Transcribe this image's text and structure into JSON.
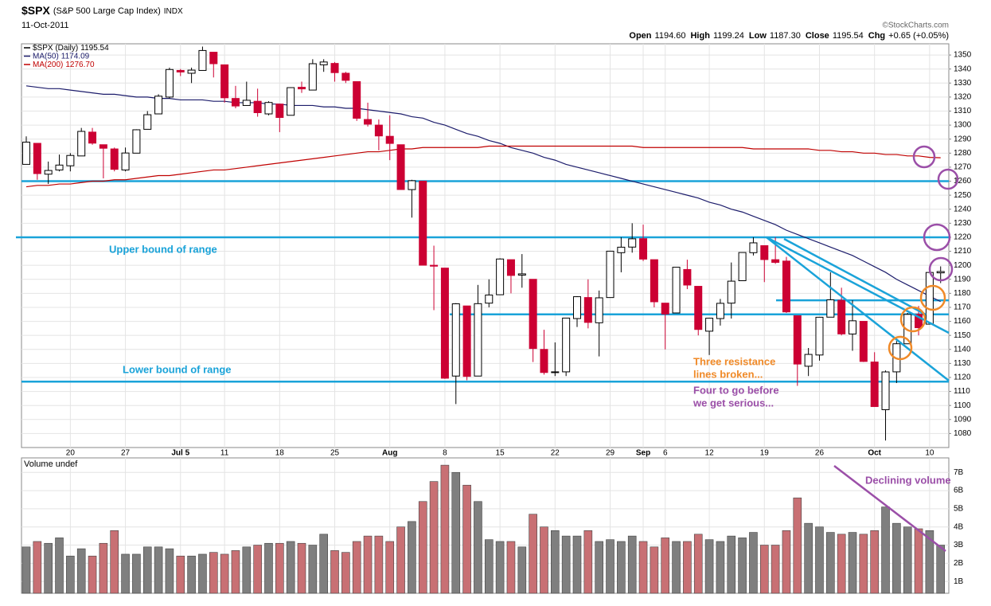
{
  "chart_data": [
    {
      "type": "candlestick",
      "title": "$SPX",
      "subtitle": "(S&P 500 Large Cap Index)",
      "exchange": "INDX",
      "date": "11-Oct-2011",
      "credit": "©StockCharts.com",
      "quote": [
        {
          "label": "Open",
          "value": "1194.60"
        },
        {
          "label": "High",
          "value": "1199.24"
        },
        {
          "label": "Low",
          "value": "1187.30"
        },
        {
          "label": "Close",
          "value": "1195.54"
        },
        {
          "label": "Chg",
          "value": "+0.65 (+0.05%)"
        }
      ],
      "name": "$SPX (Daily)",
      "legend_value": "1195.54",
      "up_color": "#000000",
      "down_color": "#cc0033",
      "categories": [
        "Jun 14",
        "Jun 15",
        "Jun 16",
        "Jun 17",
        "Jun 20",
        "Jun 21",
        "Jun 22",
        "Jun 23",
        "Jun 24",
        "Jun 27",
        "Jun 28",
        "Jun 29",
        "Jun 30",
        "Jul 1",
        "Jul 5",
        "Jul 6",
        "Jul 7",
        "Jul 8",
        "Jul 11",
        "Jul 12",
        "Jul 13",
        "Jul 14",
        "Jul 15",
        "Jul 18",
        "Jul 19",
        "Jul 20",
        "Jul 21",
        "Jul 22",
        "Jul 25",
        "Jul 26",
        "Jul 27",
        "Jul 28",
        "Jul 29",
        "Aug 1",
        "Aug 2",
        "Aug 3",
        "Aug 4",
        "Aug 5",
        "Aug 8",
        "Aug 9",
        "Aug 10",
        "Aug 11",
        "Aug 12",
        "Aug 15",
        "Aug 16",
        "Aug 17",
        "Aug 18",
        "Aug 19",
        "Aug 22",
        "Aug 23",
        "Aug 24",
        "Aug 25",
        "Aug 26",
        "Aug 29",
        "Aug 30",
        "Aug 31",
        "Sep 1",
        "Sep 2",
        "Sep 6",
        "Sep 7",
        "Sep 8",
        "Sep 9",
        "Sep 12",
        "Sep 13",
        "Sep 14",
        "Sep 15",
        "Sep 16",
        "Sep 19",
        "Sep 20",
        "Sep 21",
        "Sep 22",
        "Sep 23",
        "Sep 26",
        "Sep 27",
        "Sep 28",
        "Sep 29",
        "Sep 30",
        "Oct 3",
        "Oct 4",
        "Oct 5",
        "Oct 6",
        "Oct 7",
        "Oct 10",
        "Oct 11"
      ],
      "open": [
        1272,
        1287,
        1265,
        1268,
        1271,
        1278,
        1295,
        1286,
        1283,
        1268,
        1280,
        1297,
        1308,
        1320,
        1339,
        1337,
        1339,
        1352,
        1343,
        1319,
        1314,
        1317,
        1308,
        1315,
        1307,
        1327,
        1325,
        1343,
        1344,
        1337,
        1331,
        1304,
        1300,
        1292,
        1286,
        1254,
        1260,
        1200,
        1198,
        1121,
        1171,
        1121,
        1173,
        1179,
        1204,
        1193,
        1190,
        1140,
        1124,
        1124,
        1162,
        1177,
        1159,
        1177,
        1209,
        1213,
        1219,
        1204,
        1173,
        1166,
        1197,
        1185,
        1153,
        1162,
        1173,
        1189,
        1209,
        1214,
        1204,
        1203,
        1164,
        1128,
        1136,
        1163,
        1175,
        1151,
        1160,
        1131,
        1097,
        1124,
        1144,
        1165,
        1158,
        1194.6
      ],
      "high": [
        1292,
        1287,
        1274,
        1279,
        1280,
        1298,
        1298,
        1286,
        1284,
        1284,
        1297,
        1310,
        1322,
        1341,
        1340,
        1341,
        1356,
        1352,
        1343,
        1328,
        1331,
        1326,
        1317,
        1315,
        1327,
        1331,
        1347,
        1347,
        1345,
        1338,
        1331,
        1316,
        1304,
        1307,
        1286,
        1261,
        1260,
        1214,
        1198,
        1173,
        1171,
        1186,
        1190,
        1205,
        1204,
        1208,
        1190,
        1154,
        1145,
        1162,
        1178,
        1190,
        1182,
        1210,
        1220,
        1230,
        1229,
        1204,
        1173,
        1198,
        1204,
        1185,
        1162,
        1176,
        1202,
        1209,
        1220,
        1214,
        1220,
        1206,
        1164,
        1141,
        1163,
        1195,
        1184,
        1175,
        1160,
        1138,
        1125,
        1146,
        1166,
        1171,
        1195,
        1199.24
      ],
      "low": [
        1272,
        1261,
        1258,
        1267,
        1267,
        1278,
        1286,
        1262,
        1267,
        1267,
        1280,
        1297,
        1308,
        1319,
        1335,
        1330,
        1339,
        1334,
        1316,
        1312,
        1314,
        1306,
        1307,
        1295,
        1307,
        1323,
        1325,
        1338,
        1331,
        1330,
        1303,
        1299,
        1282,
        1275,
        1254,
        1234,
        1200,
        1168,
        1119,
        1101,
        1118,
        1121,
        1170,
        1179,
        1180,
        1184,
        1131,
        1122,
        1121,
        1121,
        1156,
        1155,
        1135,
        1177,
        1195,
        1209,
        1203,
        1170,
        1140,
        1166,
        1183,
        1150,
        1136,
        1157,
        1162,
        1189,
        1207,
        1188,
        1201,
        1166,
        1114,
        1121,
        1132,
        1163,
        1150,
        1139,
        1131,
        1099,
        1075,
        1116,
        1144,
        1150,
        1158,
        1187.3
      ],
      "close": [
        1287.87,
        1265.42,
        1267.64,
        1271.5,
        1278.36,
        1295.52,
        1287.14,
        1283.5,
        1268.45,
        1280.1,
        1296.67,
        1307.41,
        1320.64,
        1339.67,
        1337.88,
        1339.22,
        1353.22,
        1343.8,
        1319.49,
        1313.64,
        1317.72,
        1308.87,
        1316.14,
        1305.44,
        1326.73,
        1325.84,
        1343.8,
        1345.02,
        1337.43,
        1331.94,
        1304.89,
        1300.67,
        1292.28,
        1286.94,
        1254.05,
        1260.34,
        1200.07,
        1199.38,
        1119.46,
        1172.53,
        1120.76,
        1172.64,
        1178.81,
        1204.49,
        1192.76,
        1193.89,
        1140.65,
        1123.53,
        1123.82,
        1162.35,
        1177.6,
        1159.27,
        1176.8,
        1210.08,
        1212.92,
        1218.89,
        1204.42,
        1173.97,
        1165.24,
        1198.62,
        1185.9,
        1154.23,
        1162.27,
        1172.87,
        1188.68,
        1209.11,
        1216.01,
        1204.09,
        1202.09,
        1166.76,
        1129.56,
        1136.43,
        1162.95,
        1175.38,
        1151.06,
        1160.4,
        1131.42,
        1099.23,
        1123.95,
        1144.03,
        1164.97,
        1155.46,
        1194.89,
        1195.54
      ],
      "series": [
        {
          "name": "MA(50)",
          "legend_value": "1174.09",
          "color": "#1c1c6b",
          "values": [
            1328,
            1327,
            1326,
            1326,
            1325,
            1324,
            1323,
            1322,
            1322,
            1321,
            1320,
            1320,
            1319,
            1319,
            1318,
            1318,
            1318,
            1317,
            1317,
            1316,
            1316,
            1316,
            1315,
            1315,
            1314,
            1314,
            1314,
            1313,
            1313,
            1312,
            1312,
            1311,
            1310,
            1309,
            1308,
            1306,
            1305,
            1302,
            1300,
            1297,
            1294,
            1292,
            1289,
            1287,
            1284,
            1282,
            1280,
            1277,
            1275,
            1272,
            1270,
            1268,
            1266,
            1264,
            1262,
            1260,
            1258,
            1256,
            1254,
            1252,
            1250,
            1248,
            1245,
            1243,
            1240,
            1238,
            1235,
            1232,
            1229,
            1225,
            1222,
            1219,
            1216,
            1213,
            1210,
            1207,
            1203,
            1199,
            1195,
            1190,
            1186,
            1182,
            1178,
            1174.09
          ]
        },
        {
          "name": "MA(200)",
          "legend_value": "1276.70",
          "color": "#c00000",
          "values": [
            1256,
            1257,
            1257,
            1258,
            1258,
            1259,
            1260,
            1260,
            1261,
            1261,
            1262,
            1263,
            1264,
            1264,
            1265,
            1266,
            1267,
            1268,
            1268,
            1269,
            1270,
            1271,
            1272,
            1273,
            1274,
            1275,
            1276,
            1277,
            1278,
            1279,
            1280,
            1281,
            1281,
            1282,
            1283,
            1283,
            1284,
            1284,
            1284,
            1284,
            1284,
            1284,
            1285,
            1285,
            1285,
            1285,
            1285,
            1285,
            1285,
            1285,
            1285,
            1285,
            1285,
            1285,
            1285,
            1285,
            1284,
            1284,
            1284,
            1284,
            1284,
            1284,
            1284,
            1284,
            1284,
            1284,
            1283,
            1283,
            1283,
            1283,
            1283,
            1283,
            1282,
            1282,
            1281,
            1281,
            1280,
            1280,
            1279,
            1279,
            1278,
            1278,
            1277,
            1276.7
          ]
        }
      ],
      "ylim": [
        1070,
        1358
      ],
      "yticks": [
        1080,
        1090,
        1100,
        1110,
        1120,
        1130,
        1140,
        1150,
        1160,
        1170,
        1180,
        1190,
        1200,
        1210,
        1220,
        1230,
        1240,
        1250,
        1260,
        1270,
        1280,
        1290,
        1300,
        1310,
        1320,
        1330,
        1340,
        1350
      ],
      "xticks": [
        {
          "value": "Jun 20",
          "label": "20"
        },
        {
          "value": "Jun 27",
          "label": "27"
        },
        {
          "value": "Jul 5",
          "label": "Jul 5"
        },
        {
          "value": "Jul 11",
          "label": "11"
        },
        {
          "value": "Jul 18",
          "label": "18"
        },
        {
          "value": "Jul 25",
          "label": "25"
        },
        {
          "value": "Aug 1",
          "label": "Aug"
        },
        {
          "value": "Aug 8",
          "label": "8"
        },
        {
          "value": "Aug 15",
          "label": "15"
        },
        {
          "value": "Aug 22",
          "label": "22"
        },
        {
          "value": "Aug 29",
          "label": "29"
        },
        {
          "value": "Sep 1",
          "label": "Sep"
        },
        {
          "value": "Sep 6",
          "label": "6"
        },
        {
          "value": "Sep 12",
          "label": "12"
        },
        {
          "value": "Sep 19",
          "label": "19"
        },
        {
          "value": "Sep 26",
          "label": "26"
        },
        {
          "value": "Oct 3",
          "label": "Oct"
        },
        {
          "value": "Oct 10",
          "label": "10"
        }
      ],
      "grid": true,
      "levels": [
        1260,
        1220,
        1165,
        1175,
        1117
      ],
      "level_color": "#1aa3d9",
      "annotations": [
        {
          "text": [
            "Upper bound of range"
          ],
          "color": "#1aa3d9"
        },
        {
          "text": [
            "Lower bound of range"
          ],
          "color": "#1aa3d9"
        },
        {
          "text": [
            "Three resistance",
            "lines broken..."
          ],
          "color": "#f08a28"
        },
        {
          "text": [
            "Four to go before",
            "we get serious..."
          ],
          "color": "#9b4fa8"
        }
      ]
    },
    {
      "type": "bar",
      "title": "Volume undef",
      "up_color": "#7f7f7f",
      "down_color": "#c87074",
      "values": [
        2.9,
        3.2,
        3.1,
        3.4,
        2.4,
        2.8,
        2.4,
        3.1,
        3.8,
        2.5,
        2.5,
        2.9,
        2.9,
        2.8,
        2.4,
        2.4,
        2.5,
        2.6,
        2.5,
        2.7,
        2.9,
        3.0,
        3.1,
        3.1,
        3.2,
        3.1,
        3.0,
        3.6,
        2.7,
        2.6,
        3.2,
        3.5,
        3.5,
        3.2,
        4.0,
        4.3,
        5.4,
        6.5,
        7.4,
        7.0,
        6.3,
        5.4,
        3.3,
        3.2,
        3.2,
        2.9,
        4.7,
        4.0,
        3.8,
        3.5,
        3.5,
        3.8,
        3.2,
        3.3,
        3.2,
        3.5,
        3.2,
        2.9,
        3.4,
        3.2,
        3.2,
        3.6,
        3.3,
        3.2,
        3.5,
        3.4,
        3.7,
        3.0,
        3.0,
        3.8,
        5.6,
        4.2,
        4.0,
        3.7,
        3.6,
        3.7,
        3.6,
        3.8,
        5.1,
        4.2,
        4.0,
        3.9,
        3.8,
        3.0
      ],
      "ylim": [
        0.35,
        7.8
      ],
      "yticks": [
        {
          "value": 1,
          "label": "1B"
        },
        {
          "value": 2,
          "label": "2B"
        },
        {
          "value": 3,
          "label": "3B"
        },
        {
          "value": 4,
          "label": "4B"
        },
        {
          "value": 5,
          "label": "5B"
        },
        {
          "value": 6,
          "label": "6B"
        },
        {
          "value": 7,
          "label": "7B"
        }
      ],
      "annotations": [
        {
          "text": [
            "Declining volume"
          ],
          "color": "#9b4fa8"
        }
      ]
    }
  ]
}
